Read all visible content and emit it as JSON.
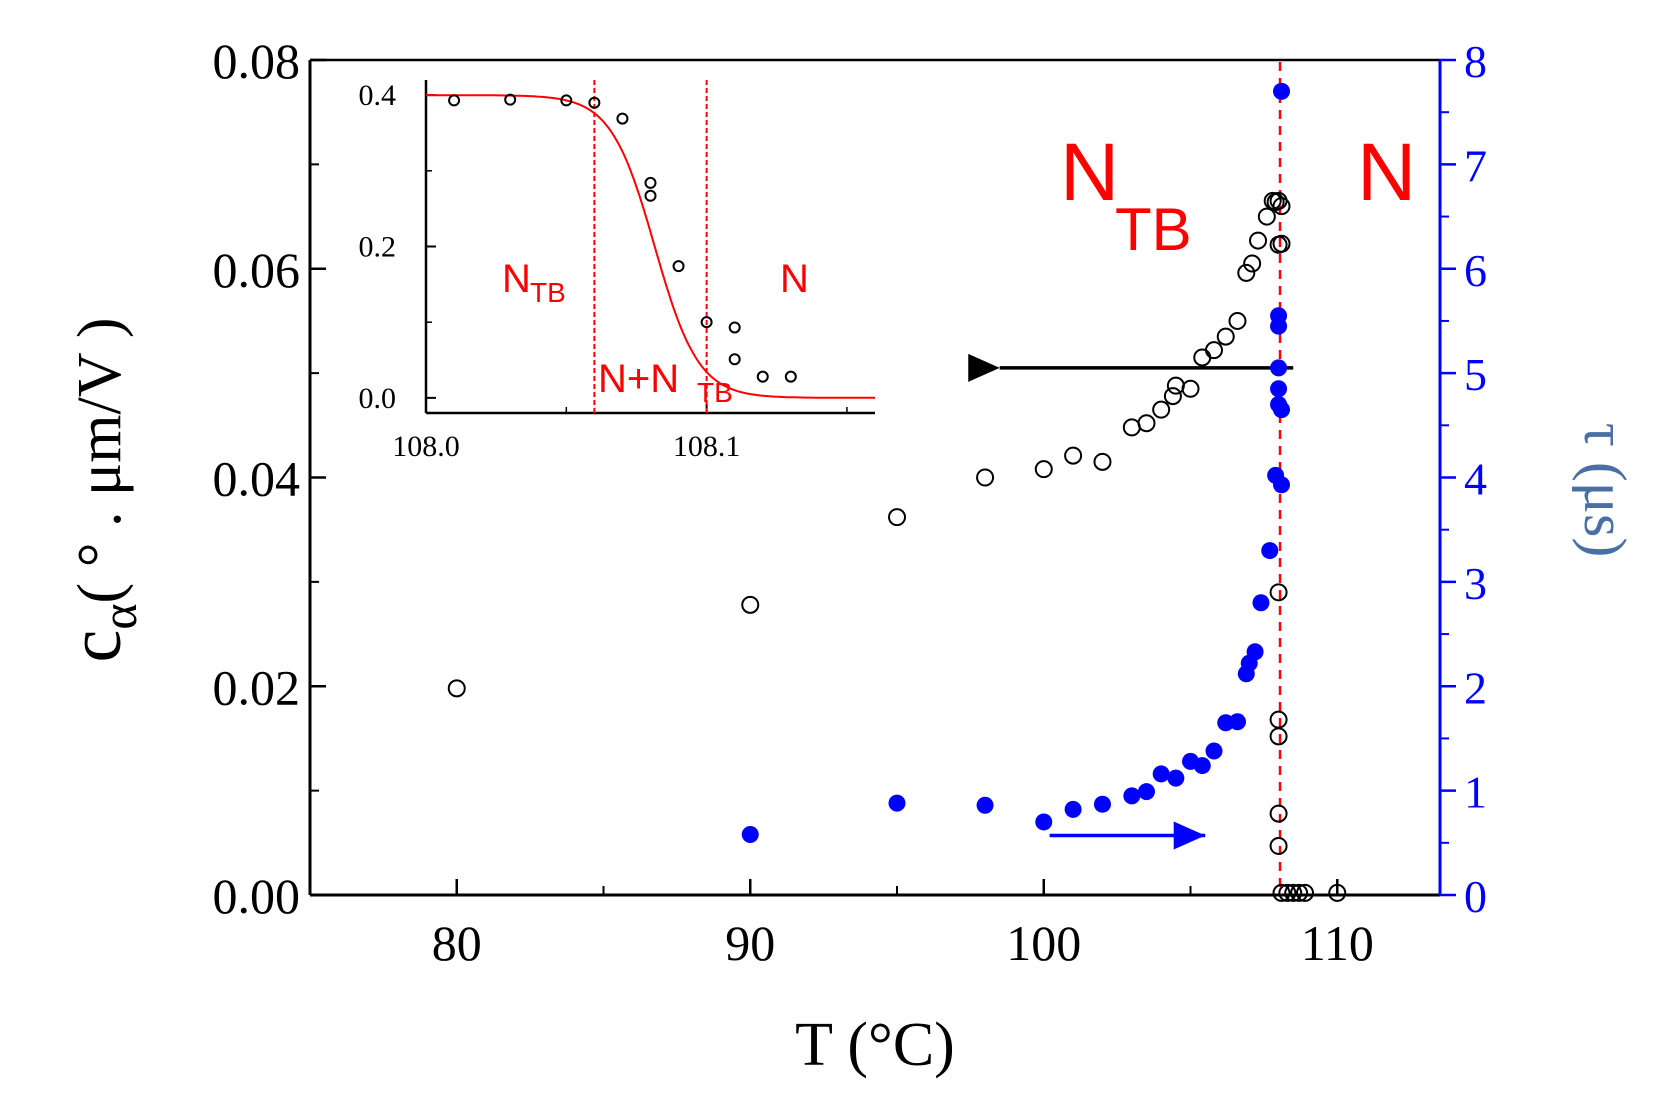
{
  "chart_data": {
    "type": "scatter",
    "x_axis": {
      "label": "T (°C)",
      "range": [
        75,
        113.5
      ],
      "ticks": [
        80,
        90,
        100,
        110
      ],
      "tick_labels": [
        "80",
        "90",
        "100",
        "110"
      ]
    },
    "y_axis_left": {
      "label_main": "c",
      "label_sub": "α",
      "label_rest": "( ° . μm/V )",
      "range": [
        0,
        0.08
      ],
      "ticks": [
        0,
        0.02,
        0.04,
        0.06,
        0.08
      ],
      "tick_labels": [
        "0.00",
        "0.02",
        "0.04",
        "0.06",
        "0.08"
      ]
    },
    "y_axis_right": {
      "label": "τ (μs)",
      "range": [
        0,
        8
      ],
      "ticks": [
        0,
        1,
        2,
        3,
        4,
        5,
        6,
        7,
        8
      ],
      "tick_labels": [
        "0",
        "1",
        "2",
        "3",
        "4",
        "5",
        "6",
        "7",
        "8"
      ],
      "color": "#0000ff",
      "label_color": "#4a6fa5"
    },
    "series": [
      {
        "name": "c_alpha",
        "axis": "left",
        "marker": "open-circle",
        "color": "#000000",
        "points": [
          [
            80,
            0.0198
          ],
          [
            90,
            0.0278
          ],
          [
            95,
            0.0362
          ],
          [
            98,
            0.04
          ],
          [
            100,
            0.0408
          ],
          [
            101,
            0.0421
          ],
          [
            102,
            0.0415
          ],
          [
            103,
            0.0448
          ],
          [
            103.5,
            0.0452
          ],
          [
            104,
            0.0465
          ],
          [
            104.4,
            0.0478
          ],
          [
            104.5,
            0.0488
          ],
          [
            105,
            0.0485
          ],
          [
            105.4,
            0.0515
          ],
          [
            105.8,
            0.0522
          ],
          [
            106.2,
            0.0535
          ],
          [
            106.6,
            0.055
          ],
          [
            106.9,
            0.0596
          ],
          [
            107.1,
            0.0605
          ],
          [
            107.3,
            0.0627
          ],
          [
            107.6,
            0.065
          ],
          [
            107.8,
            0.0665
          ],
          [
            107.9,
            0.0664
          ],
          [
            108.0,
            0.0665
          ],
          [
            108.0,
            0.0623
          ],
          [
            108.1,
            0.0624
          ],
          [
            108.1,
            0.066
          ],
          [
            108.0,
            0.029
          ],
          [
            108.0,
            0.0168
          ],
          [
            108.0,
            0.0152
          ],
          [
            108.0,
            0.0078
          ],
          [
            108.0,
            0.0047
          ],
          [
            108.1,
            0.0002
          ],
          [
            108.3,
            0.0002
          ],
          [
            108.5,
            0.0002
          ],
          [
            108.7,
            0.0002
          ],
          [
            108.9,
            0.0002
          ],
          [
            110,
            0.0002
          ]
        ]
      },
      {
        "name": "tau",
        "axis": "right",
        "marker": "filled-circle",
        "color": "#0000ff",
        "points": [
          [
            90,
            0.58
          ],
          [
            95,
            0.88
          ],
          [
            98,
            0.86
          ],
          [
            100,
            0.7
          ],
          [
            101,
            0.82
          ],
          [
            102,
            0.87
          ],
          [
            103,
            0.95
          ],
          [
            103.5,
            0.99
          ],
          [
            104,
            1.16
          ],
          [
            104.5,
            1.12
          ],
          [
            105,
            1.28
          ],
          [
            105.4,
            1.24
          ],
          [
            105.8,
            1.38
          ],
          [
            106.2,
            1.65
          ],
          [
            106.6,
            1.66
          ],
          [
            106.9,
            2.12
          ],
          [
            107.0,
            2.22
          ],
          [
            107.2,
            2.33
          ],
          [
            107.4,
            2.8
          ],
          [
            107.7,
            3.3
          ],
          [
            107.9,
            4.02
          ],
          [
            108.0,
            4.7
          ],
          [
            108.0,
            4.85
          ],
          [
            108.0,
            5.05
          ],
          [
            108.0,
            5.45
          ],
          [
            108.0,
            5.55
          ],
          [
            108.1,
            7.7
          ],
          [
            108.1,
            3.93
          ],
          [
            108.1,
            4.65
          ]
        ]
      }
    ],
    "transition_line_x": 108.05,
    "phase_labels": [
      {
        "main": "N",
        "sub": "TB"
      },
      {
        "main": "N",
        "sub": ""
      }
    ],
    "arrows": [
      {
        "axis": "left",
        "direction": "left",
        "from_x": 108.5,
        "to_x": 98.5,
        "y": 0.0505
      },
      {
        "axis": "right",
        "direction": "right",
        "from_x": 100.2,
        "to_x": 105.5,
        "y": 0.57
      }
    ],
    "inset": {
      "x_range": [
        108.0,
        108.16
      ],
      "y_range": [
        -0.02,
        0.42
      ],
      "x_ticks": [
        108.0,
        108.1
      ],
      "x_tick_labels": [
        "108.0",
        "108.1"
      ],
      "y_ticks": [
        0.0,
        0.2,
        0.4
      ],
      "y_tick_labels": [
        "0.0",
        "0.2",
        "0.4"
      ],
      "points": [
        [
          108.01,
          0.393
        ],
        [
          108.03,
          0.394
        ],
        [
          108.05,
          0.393
        ],
        [
          108.06,
          0.39
        ],
        [
          108.07,
          0.369
        ],
        [
          108.08,
          0.284
        ],
        [
          108.08,
          0.267
        ],
        [
          108.09,
          0.174
        ],
        [
          108.1,
          0.1
        ],
        [
          108.11,
          0.093
        ],
        [
          108.11,
          0.051
        ],
        [
          108.12,
          0.028
        ],
        [
          108.13,
          0.028
        ]
      ],
      "fit_curve": {
        "color": "#ff0000",
        "top": 0.4,
        "bottom": 0.0,
        "center": 108.0815,
        "width": 0.0078
      },
      "vlines": [
        108.06,
        108.1
      ],
      "region_labels": [
        {
          "main": "N",
          "sub": "TB"
        },
        {
          "main": "N+N",
          "sub": "TB"
        },
        {
          "main": "N",
          "sub": ""
        }
      ]
    }
  }
}
